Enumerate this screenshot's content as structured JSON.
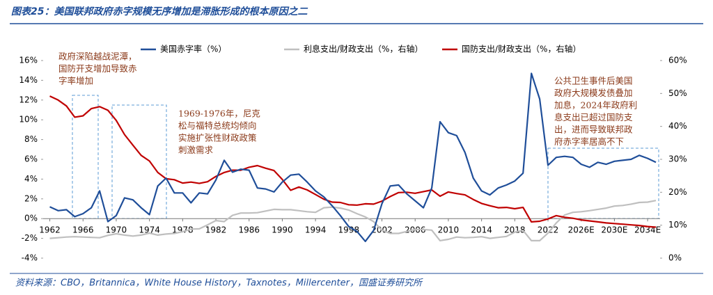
{
  "title": "图表25：美国联邦政府赤字规模无序增加是滞胀形成的根本原因之二",
  "source": "资料来源：CBO，Britannica，White House History，Taxnotes，Millercenter，国盛证券研究所",
  "chart_data": {
    "type": "line",
    "x": [
      1962,
      1963,
      1964,
      1965,
      1966,
      1967,
      1968,
      1969,
      1970,
      1971,
      1972,
      1973,
      1974,
      1975,
      1976,
      1977,
      1978,
      1979,
      1980,
      1981,
      1982,
      1983,
      1984,
      1985,
      1986,
      1987,
      1988,
      1989,
      1990,
      1991,
      1992,
      1993,
      1994,
      1995,
      1996,
      1997,
      1998,
      1999,
      2000,
      2001,
      2002,
      2003,
      2004,
      2005,
      2006,
      2007,
      2008,
      2009,
      2010,
      2011,
      2012,
      2013,
      2014,
      2015,
      2016,
      2017,
      2018,
      2019,
      2020,
      2021,
      2022,
      2023,
      2024,
      2025,
      2026,
      2027,
      2028,
      2029,
      2030,
      2031,
      2032,
      2033,
      2034,
      2035
    ],
    "xlim": [
      1961.2,
      2035.5
    ],
    "xticks": [
      1962,
      1966,
      1970,
      1974,
      1978,
      1982,
      1986,
      1990,
      1994,
      1998,
      2002,
      2006,
      2010,
      2014,
      2018,
      2022,
      {
        "value": 2026,
        "label": "2026E"
      },
      {
        "value": 2030,
        "label": "2030E"
      },
      {
        "value": 2034,
        "label": "2034E"
      }
    ],
    "ylim": [
      -4,
      16
    ],
    "yticks": [
      {
        "value": -4,
        "label": "-4%"
      },
      {
        "value": -2,
        "label": "-2%"
      },
      {
        "value": 0,
        "label": "0%"
      },
      {
        "value": 2,
        "label": "2%"
      },
      {
        "value": 4,
        "label": "4%"
      },
      {
        "value": 6,
        "label": "6%"
      },
      {
        "value": 8,
        "label": "8%"
      },
      {
        "value": 10,
        "label": "10%"
      },
      {
        "value": 12,
        "label": "12%"
      },
      {
        "value": 14,
        "label": "14%"
      },
      {
        "value": 16,
        "label": "16%"
      }
    ],
    "y2lim": [
      0,
      60
    ],
    "y2ticks": [
      {
        "value": 0,
        "label": "0%"
      },
      {
        "value": 10,
        "label": "10%"
      },
      {
        "value": 20,
        "label": "20%"
      },
      {
        "value": 30,
        "label": "30%"
      },
      {
        "value": 40,
        "label": "40%"
      },
      {
        "value": 50,
        "label": "50%"
      },
      {
        "value": 60,
        "label": "60%"
      }
    ],
    "series": [
      {
        "name": "美国赤字率（%）",
        "color": "#1f4e99",
        "axis": "y",
        "values": [
          1.2,
          0.8,
          0.9,
          0.2,
          0.5,
          1.1,
          2.8,
          -0.3,
          0.3,
          2.1,
          1.9,
          1.1,
          0.4,
          3.3,
          4.1,
          2.6,
          2.6,
          1.6,
          2.6,
          2.5,
          3.9,
          5.9,
          4.7,
          5.0,
          4.9,
          3.1,
          3.0,
          2.7,
          3.7,
          4.4,
          4.5,
          3.7,
          2.8,
          2.2,
          1.3,
          0.3,
          -0.8,
          -1.3,
          -2.3,
          -1.2,
          1.5,
          3.3,
          3.4,
          2.5,
          1.8,
          1.1,
          3.1,
          9.8,
          8.7,
          8.4,
          6.7,
          4.1,
          2.8,
          2.4,
          3.1,
          3.4,
          3.8,
          4.6,
          14.7,
          12.1,
          5.4,
          6.2,
          6.3,
          6.2,
          5.5,
          5.2,
          5.7,
          5.5,
          5.8,
          5.9,
          6.0,
          6.4,
          6.1,
          5.7
        ]
      },
      {
        "name": "利息支出/财政支出（%，右轴）",
        "color": "#bfbfbf",
        "axis": "y2",
        "values": [
          6.0,
          6.2,
          6.4,
          6.5,
          6.4,
          6.3,
          6.2,
          6.9,
          7.4,
          7.0,
          6.7,
          7.0,
          7.6,
          7.0,
          7.3,
          7.5,
          8.0,
          8.8,
          8.9,
          10.1,
          11.4,
          11.1,
          13.0,
          13.7,
          13.7,
          13.8,
          14.3,
          14.8,
          14.7,
          14.7,
          14.4,
          14.1,
          13.9,
          15.3,
          15.5,
          15.2,
          14.6,
          13.5,
          12.5,
          11.1,
          8.5,
          7.5,
          7.5,
          8.1,
          8.7,
          8.7,
          8.5,
          5.3,
          5.7,
          6.4,
          6.2,
          6.3,
          6.5,
          6.0,
          6.3,
          6.6,
          7.9,
          8.4,
          5.3,
          5.3,
          7.6,
          10.7,
          13.1,
          13.9,
          14.1,
          14.4,
          14.8,
          15.2,
          15.8,
          16.0,
          16.4,
          16.9,
          17.0,
          17.5
        ]
      },
      {
        "name": "国防支出/财政支出（%，右轴）",
        "color": "#c00000",
        "axis": "y2",
        "values": [
          49.2,
          48.0,
          46.2,
          42.8,
          43.2,
          45.4,
          46.0,
          44.9,
          41.8,
          37.5,
          34.3,
          31.2,
          29.5,
          26.0,
          24.1,
          23.8,
          22.8,
          23.1,
          22.7,
          23.2,
          24.8,
          26.0,
          26.7,
          26.7,
          27.6,
          28.1,
          27.3,
          26.6,
          23.9,
          20.6,
          21.6,
          20.7,
          19.3,
          17.9,
          17.0,
          16.9,
          16.2,
          16.1,
          16.5,
          16.4,
          17.3,
          18.7,
          19.9,
          20.0,
          19.7,
          20.2,
          20.7,
          18.8,
          20.1,
          19.6,
          19.2,
          17.8,
          16.6,
          15.9,
          15.3,
          15.4,
          15.0,
          15.4,
          11.0,
          11.2,
          11.9,
          12.9,
          12.4,
          12.1,
          11.6,
          11.3,
          11.0,
          10.7,
          10.5,
          10.3,
          10.1,
          9.9,
          9.6,
          9.4
        ]
      }
    ],
    "annotations": [
      {
        "lines": [
          "政府深陷越战泥潭，",
          "国防开支增加导致赤",
          "字率增加"
        ]
      },
      {
        "lines": [
          "1969-1976年，尼克",
          "松与福特总统均倾向",
          "实施扩张性财政政策",
          "刺激需求"
        ]
      },
      {
        "lines": [
          "公共卫生事件后美国",
          "政府大规模发债叠加",
          "加息，2024年政府利",
          "息支出已超过国防支",
          "出，进而导致联邦政",
          "府赤字率居高不下"
        ]
      }
    ]
  }
}
